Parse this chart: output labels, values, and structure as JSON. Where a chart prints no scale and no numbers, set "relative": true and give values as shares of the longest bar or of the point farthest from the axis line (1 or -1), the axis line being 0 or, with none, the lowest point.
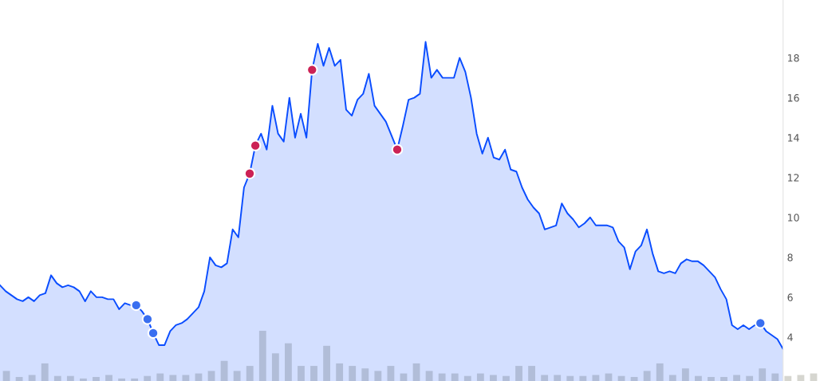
{
  "chart_data": [
    {
      "type": "area",
      "categories": [
        null,
        null,
        null,
        null,
        null,
        null,
        null,
        null,
        null,
        null,
        null,
        null,
        null,
        null,
        null,
        null,
        null,
        null,
        null,
        null,
        null,
        null,
        null,
        null,
        null,
        null,
        null,
        null,
        null,
        null,
        null,
        null,
        null,
        null,
        null,
        null,
        null,
        null,
        null,
        null,
        null,
        null,
        null,
        null,
        null,
        null,
        null,
        null,
        null,
        null,
        null,
        null,
        null,
        null,
        null,
        null,
        null,
        null,
        null,
        null,
        null,
        null,
        null,
        null,
        null,
        null,
        null,
        null,
        null,
        null,
        null,
        null,
        null,
        null,
        null,
        null,
        null,
        null,
        null,
        null,
        null,
        null,
        null,
        null,
        null,
        null,
        null,
        null,
        null,
        null,
        null,
        null,
        null,
        null,
        null,
        null,
        null,
        null,
        null,
        null,
        null,
        null,
        null,
        null,
        null,
        null,
        null,
        null,
        null,
        null,
        null,
        null,
        null,
        null,
        null,
        null,
        null,
        null,
        null,
        null,
        null,
        null,
        null,
        null,
        null,
        null,
        null,
        null,
        null,
        null,
        null,
        null,
        null,
        null,
        null,
        null,
        null,
        null,
        null
      ],
      "ylim": [
        1.8,
        20.9
      ],
      "yticks": [
        4,
        6,
        8,
        10,
        12,
        14,
        16,
        18
      ],
      "tick_labels": "y",
      "grid": false,
      "series": [
        {
          "type": "area",
          "color": "#0a4dff",
          "values": [
            6.6,
            6.3,
            6.1,
            5.9,
            5.8,
            6.0,
            5.8,
            6.1,
            6.2,
            7.1,
            6.7,
            6.5,
            6.6,
            6.5,
            6.3,
            5.8,
            6.3,
            6.0,
            6.0,
            5.9,
            5.9,
            5.4,
            5.7,
            5.6,
            5.6,
            5.3,
            4.9,
            4.2,
            3.6,
            3.6,
            4.3,
            4.6,
            4.7,
            4.9,
            5.2,
            5.5,
            6.3,
            8.0,
            7.6,
            7.5,
            7.7,
            9.4,
            9.0,
            11.5,
            12.2,
            13.6,
            14.2,
            13.4,
            15.6,
            14.2,
            13.8,
            16.0,
            14.0,
            15.2,
            14.0,
            17.4,
            18.7,
            17.6,
            18.5,
            17.6,
            17.9,
            15.4,
            15.1,
            15.9,
            16.2,
            17.2,
            15.6,
            15.2,
            14.8,
            14.1,
            13.4,
            14.6,
            15.9,
            16.0,
            16.2,
            18.8,
            17.0,
            17.4,
            17.0,
            17.0,
            17.0,
            18.0,
            17.3,
            16.0,
            14.2,
            13.2,
            14.0,
            13.0,
            12.9,
            13.4,
            12.4,
            12.3,
            11.5,
            10.9,
            10.5,
            10.2,
            9.4,
            9.5,
            9.6,
            10.7,
            10.2,
            9.9,
            9.5,
            9.7,
            10.0,
            9.6,
            9.6,
            9.6,
            9.5,
            8.8,
            8.5,
            7.4,
            8.3,
            8.6,
            9.4,
            8.2,
            7.3,
            7.2,
            7.3,
            7.2,
            7.7,
            7.9,
            7.8,
            7.8,
            7.6,
            7.3,
            7.0,
            6.4,
            5.9,
            4.6,
            4.4,
            4.6,
            4.4,
            4.6,
            4.7,
            4.3,
            4.1,
            3.9,
            3.4
          ]
        },
        {
          "type": "scatter",
          "color": "#cc2255",
          "marker": "circle",
          "values": [
            null,
            null,
            null,
            null,
            null,
            null,
            null,
            null,
            null,
            null,
            null,
            null,
            null,
            null,
            null,
            null,
            null,
            null,
            null,
            null,
            null,
            null,
            null,
            null,
            null,
            null,
            null,
            null,
            null,
            null,
            null,
            null,
            null,
            null,
            null,
            null,
            null,
            null,
            null,
            null,
            null,
            null,
            null,
            null,
            12.2,
            13.6,
            null,
            null,
            null,
            null,
            null,
            null,
            null,
            null,
            null,
            17.4,
            null,
            null,
            null,
            null,
            null,
            null,
            null,
            null,
            null,
            null,
            null,
            null,
            null,
            null,
            13.4,
            null,
            null,
            null,
            null,
            null,
            null,
            null,
            null,
            null,
            null,
            null,
            null,
            null,
            null,
            null,
            null,
            null,
            null,
            null,
            null,
            null,
            null,
            null,
            null,
            null,
            null,
            null,
            null,
            null,
            null,
            null,
            null,
            null,
            null,
            null,
            null,
            null,
            null,
            null,
            null,
            null,
            null,
            null,
            null,
            null,
            null,
            null,
            null,
            null,
            null,
            null,
            null,
            null,
            null,
            null,
            null,
            null,
            null,
            null,
            null,
            null,
            null,
            null,
            null,
            null,
            null,
            null,
            null
          ]
        },
        {
          "type": "scatter",
          "color": "#3a6ff0",
          "marker": "circle",
          "values": [
            null,
            null,
            null,
            null,
            null,
            null,
            null,
            null,
            null,
            null,
            null,
            null,
            null,
            null,
            null,
            null,
            null,
            null,
            null,
            null,
            null,
            null,
            null,
            null,
            5.6,
            null,
            4.9,
            4.2,
            null,
            null,
            null,
            null,
            null,
            null,
            null,
            null,
            null,
            null,
            null,
            null,
            null,
            null,
            null,
            null,
            null,
            null,
            null,
            null,
            null,
            null,
            null,
            null,
            null,
            null,
            null,
            null,
            null,
            null,
            null,
            null,
            null,
            null,
            null,
            null,
            null,
            null,
            null,
            null,
            null,
            null,
            null,
            null,
            null,
            null,
            null,
            null,
            null,
            null,
            null,
            null,
            null,
            null,
            null,
            null,
            null,
            null,
            null,
            null,
            null,
            null,
            null,
            null,
            null,
            null,
            null,
            null,
            null,
            null,
            null,
            null,
            null,
            null,
            null,
            null,
            null,
            null,
            null,
            null,
            null,
            null,
            null,
            null,
            null,
            null,
            null,
            null,
            null,
            null,
            null,
            null,
            null,
            null,
            null,
            null,
            null,
            null,
            null,
            null,
            null,
            null,
            null,
            null,
            null,
            null,
            4.7,
            null,
            null,
            null,
            null
          ]
        }
      ]
    },
    {
      "type": "bar",
      "relative": true,
      "color": "#d6d6d0",
      "categories": [
        null,
        null,
        null,
        null,
        null,
        null,
        null,
        null,
        null,
        null,
        null,
        null,
        null,
        null,
        null,
        null,
        null,
        null,
        null,
        null,
        null,
        null,
        null,
        null,
        null,
        null,
        null,
        null,
        null,
        null,
        null,
        null,
        null,
        null,
        null,
        null,
        null,
        null,
        null,
        null,
        null,
        null,
        null,
        null,
        null,
        null,
        null,
        null,
        null,
        null,
        null,
        null,
        null,
        null,
        null,
        null,
        null,
        null,
        null,
        null,
        null,
        null,
        null,
        null
      ],
      "values": [
        0.2,
        0.08,
        0.12,
        0.35,
        0.1,
        0.1,
        0.05,
        0.08,
        0.12,
        0.05,
        0.05,
        0.1,
        0.15,
        0.12,
        0.12,
        0.15,
        0.2,
        0.4,
        0.2,
        0.3,
        1.0,
        0.55,
        0.75,
        0.3,
        0.3,
        0.7,
        0.35,
        0.3,
        0.25,
        0.2,
        0.3,
        0.15,
        0.35,
        0.2,
        0.15,
        0.15,
        0.1,
        0.15,
        0.12,
        0.1,
        0.3,
        0.3,
        0.12,
        0.12,
        0.1,
        0.1,
        0.12,
        0.15,
        0.1,
        0.08,
        0.2,
        0.35,
        0.12,
        0.25,
        0.1,
        0.08,
        0.08,
        0.12,
        0.1,
        0.25,
        0.15,
        0.1,
        0.12,
        0.15
      ]
    }
  ]
}
